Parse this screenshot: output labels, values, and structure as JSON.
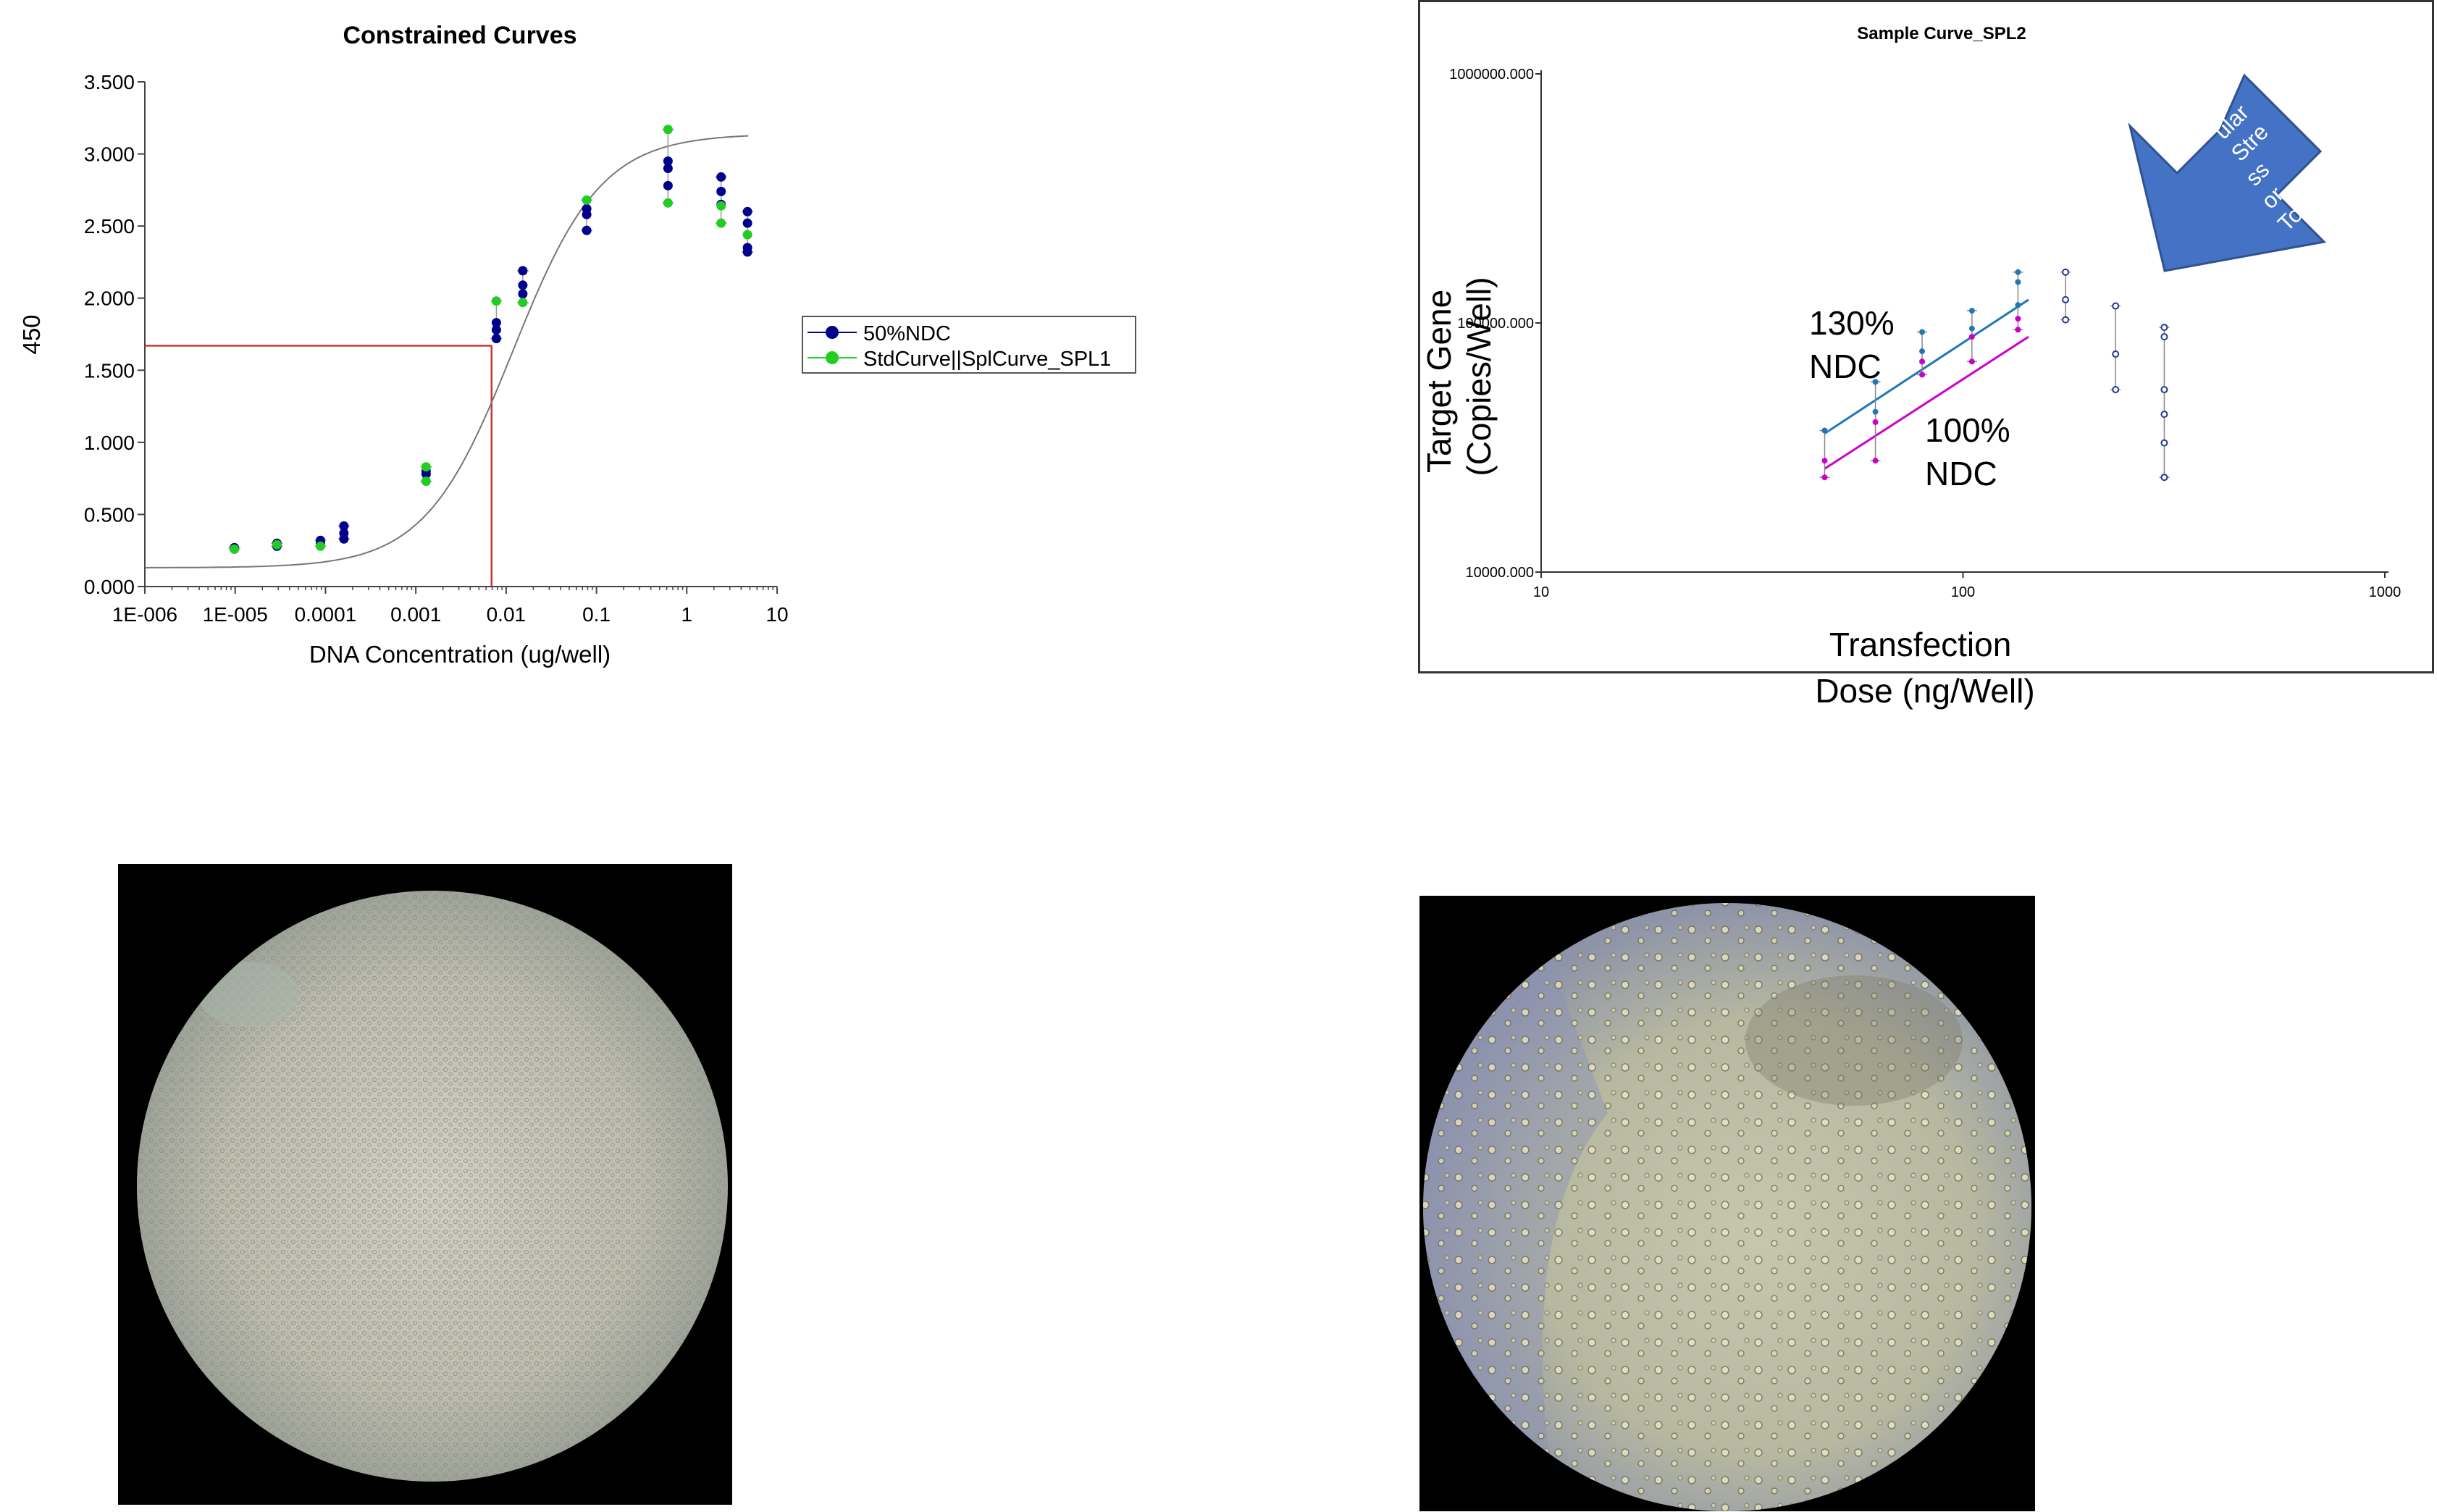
{
  "chart_data": [
    {
      "type": "scatter",
      "title": "Constrained Curves",
      "xlabel": "DNA Concentration (ug/well)",
      "ylabel": "450",
      "x_scale": "log",
      "xlim": [
        1e-06,
        10
      ],
      "ylim": [
        0,
        3.5
      ],
      "x_ticks": [
        1e-06,
        1e-05,
        0.0001,
        0.001,
        0.01,
        0.1,
        1,
        10
      ],
      "x_tick_labels": [
        "1E-006",
        "1E-005",
        "0.0001",
        "0.001",
        "0.01",
        "0.1",
        "1",
        "10"
      ],
      "y_ticks": [
        0,
        0.5,
        1,
        1.5,
        2,
        2.5,
        3,
        3.5
      ],
      "y_tick_labels": [
        "0.000",
        "0.500",
        "1.000",
        "1.500",
        "2.000",
        "2.500",
        "3.000",
        "3.500"
      ],
      "legend_position": "right",
      "series": [
        {
          "name": "50%NDC",
          "color": "#00008b",
          "points": [
            [
              9.8e-06,
              0.26
            ],
            [
              9.8e-06,
              0.27
            ],
            [
              2.9e-05,
              0.28
            ],
            [
              2.9e-05,
              0.3
            ],
            [
              8.8e-05,
              0.3
            ],
            [
              8.8e-05,
              0.32
            ],
            [
              0.00016,
              0.33
            ],
            [
              0.00016,
              0.37
            ],
            [
              0.00016,
              0.42
            ],
            [
              0.0013,
              0.78
            ],
            [
              0.0013,
              0.8
            ],
            [
              0.0078,
              1.72
            ],
            [
              0.0078,
              1.78
            ],
            [
              0.0078,
              1.83
            ],
            [
              0.0153,
              2.03
            ],
            [
              0.0153,
              2.09
            ],
            [
              0.0153,
              2.19
            ],
            [
              0.078,
              2.47
            ],
            [
              0.078,
              2.58
            ],
            [
              0.078,
              2.62
            ],
            [
              0.62,
              2.78
            ],
            [
              0.62,
              2.9
            ],
            [
              0.62,
              2.95
            ],
            [
              2.4,
              2.65
            ],
            [
              2.4,
              2.74
            ],
            [
              2.4,
              2.84
            ],
            [
              4.7,
              2.32
            ],
            [
              4.7,
              2.35
            ],
            [
              4.7,
              2.52
            ],
            [
              4.7,
              2.6
            ]
          ]
        },
        {
          "name": "StdCurve||SplCurve_SPL1",
          "color": "#22cc22",
          "points": [
            [
              9.8e-06,
              0.26
            ],
            [
              2.9e-05,
              0.29
            ],
            [
              8.8e-05,
              0.28
            ],
            [
              0.0013,
              0.73
            ],
            [
              0.0013,
              0.83
            ],
            [
              0.0078,
              1.98
            ],
            [
              0.0153,
              1.97
            ],
            [
              0.078,
              2.68
            ],
            [
              0.62,
              2.66
            ],
            [
              0.62,
              3.17
            ],
            [
              2.4,
              2.52
            ],
            [
              2.4,
              2.64
            ],
            [
              4.7,
              2.44
            ]
          ]
        }
      ],
      "fit": {
        "type": "4PL",
        "bottom": 0.13,
        "top": 3.14,
        "ec50": 0.0119,
        "hill": 0.89,
        "x_range": [
          1e-06,
          4.8
        ],
        "color": "#777777"
      },
      "reference_lines": {
        "x": 0.0069,
        "y": 1.67,
        "color": "#cc3333"
      }
    },
    {
      "type": "scatter",
      "title": "Sample Curve_SPL2",
      "xlabel": "Transfection Dose (ng/Well)",
      "ylabel": "Target Gene (Copies/Well)",
      "x_scale": "log",
      "y_scale": "log",
      "xlim": [
        10,
        1000
      ],
      "ylim": [
        10000,
        1000000
      ],
      "x_ticks": [
        10,
        100,
        1000
      ],
      "x_tick_labels": [
        "10",
        "100",
        "1000"
      ],
      "y_ticks": [
        10000,
        100000,
        1000000
      ],
      "y_tick_labels": [
        "10000.000",
        "100000.000",
        "1000000.000"
      ],
      "series": [
        {
          "name": "130% NDC",
          "color": "#1f77b4",
          "fit_line": [
            [
              47,
              36000
            ],
            [
              143,
              124000
            ]
          ],
          "points": [
            [
              47,
              37000
            ],
            [
              62,
              44000
            ],
            [
              62,
              58000
            ],
            [
              80,
              77000
            ],
            [
              80,
              92000
            ],
            [
              105,
              95000
            ],
            [
              105,
              112000
            ],
            [
              135,
              118000
            ],
            [
              135,
              146000
            ],
            [
              135,
              160000
            ]
          ]
        },
        {
          "name": "100% NDC",
          "color": "#cc00cc",
          "fit_line": [
            [
              47,
              26000
            ],
            [
              143,
              88000
            ]
          ],
          "points": [
            [
              47,
              24000
            ],
            [
              47,
              28000
            ],
            [
              62,
              28000
            ],
            [
              62,
              40000
            ],
            [
              80,
              62000
            ],
            [
              80,
              70000
            ],
            [
              105,
              70000
            ],
            [
              105,
              88000
            ],
            [
              135,
              94000
            ],
            [
              135,
              104000
            ]
          ]
        },
        {
          "name": "",
          "color": "#1f3a93",
          "hollow": true,
          "points": [
            [
              175,
              160000
            ],
            [
              175,
              124000
            ],
            [
              175,
              103000
            ],
            [
              230,
              117000
            ],
            [
              230,
              75000
            ],
            [
              230,
              54000
            ],
            [
              300,
              54000
            ],
            [
              300,
              43000
            ],
            [
              300,
              33000
            ],
            [
              300,
              24000
            ],
            [
              300,
              96000
            ],
            [
              300,
              88000
            ]
          ]
        }
      ],
      "labels": {
        "series_130": "130% NDC",
        "series_100": "100% NDC"
      },
      "arrow_label": "ular Stre ss or Toxi city",
      "arrow_color": "#4472c4"
    }
  ],
  "images": {
    "micrograph_left": "dense-confluent-cells",
    "micrograph_right": "sparse-stressed-cells"
  }
}
